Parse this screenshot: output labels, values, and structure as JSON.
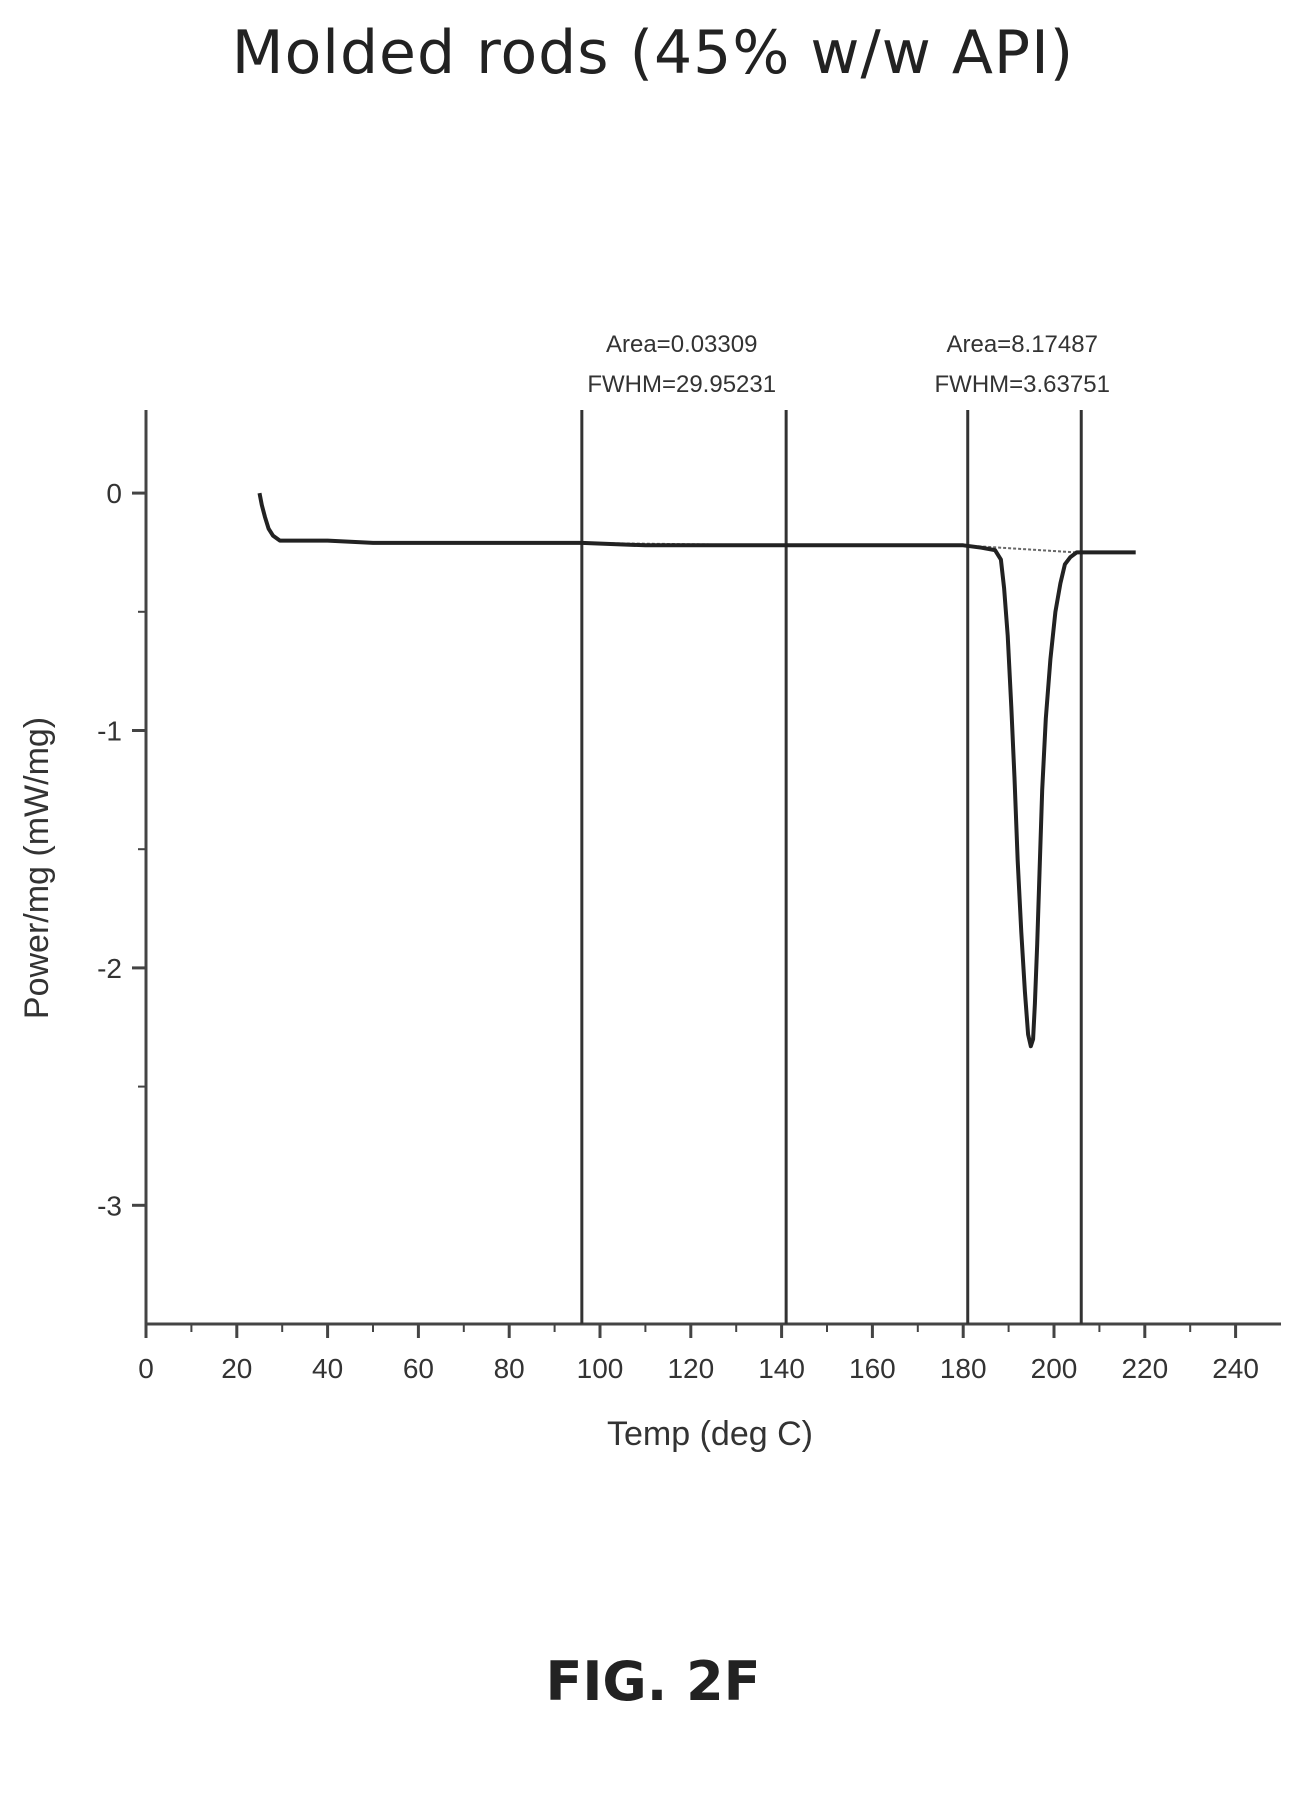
{
  "figure_label": "FIG. 2F",
  "chart_data": {
    "type": "line",
    "title": "Molded rods (45% w/w API)",
    "xlabel": "Temp (deg C)",
    "ylabel": "Power/mg (mW/mg)",
    "xlim": [
      0,
      250
    ],
    "ylim": [
      -3.5,
      0.35
    ],
    "x_ticks": [
      0,
      20,
      40,
      60,
      80,
      100,
      120,
      140,
      160,
      180,
      200,
      220,
      240
    ],
    "y_ticks": [
      0,
      -1,
      -2,
      -3
    ],
    "grid": false,
    "series": [
      {
        "x": [
          25.0,
          25.5,
          26.2,
          27.0,
          28.0,
          29.5,
          31.5,
          35,
          40,
          50,
          60,
          80,
          96,
          110,
          140,
          160,
          180,
          184,
          187,
          188.3,
          189.0,
          189.8,
          190.6,
          191.3,
          192.0,
          192.8,
          193.6,
          194.3,
          194.9,
          195.4,
          195.8,
          196.3,
          196.8,
          197.4,
          198.2,
          199.2,
          200.3,
          201.4,
          202.4,
          203.6,
          205.0,
          207,
          212,
          218
        ],
        "y": [
          0.0,
          -0.05,
          -0.1,
          -0.15,
          -0.18,
          -0.2,
          -0.2,
          -0.2,
          -0.2,
          -0.21,
          -0.21,
          -0.21,
          -0.21,
          -0.22,
          -0.22,
          -0.22,
          -0.22,
          -0.23,
          -0.24,
          -0.28,
          -0.4,
          -0.6,
          -0.9,
          -1.2,
          -1.55,
          -1.85,
          -2.1,
          -2.28,
          -2.33,
          -2.3,
          -2.15,
          -1.9,
          -1.6,
          -1.25,
          -0.95,
          -0.7,
          -0.5,
          -0.38,
          -0.3,
          -0.27,
          -0.25,
          -0.25,
          -0.25,
          -0.25
        ]
      }
    ],
    "baselines": [
      {
        "x": [
          96,
          140
        ],
        "y": [
          -0.21,
          -0.22
        ]
      },
      {
        "x": [
          180,
          205
        ],
        "y": [
          -0.22,
          -0.25
        ]
      }
    ],
    "vertical_lines": [
      96,
      141,
      181,
      206
    ],
    "annotations": [
      {
        "lines": [
          "Area=0.03309",
          "FWHM=29.95231"
        ],
        "x": 118
      },
      {
        "lines": [
          "Area=8.17487",
          "FWHM=3.63751"
        ],
        "x": 193
      }
    ]
  }
}
